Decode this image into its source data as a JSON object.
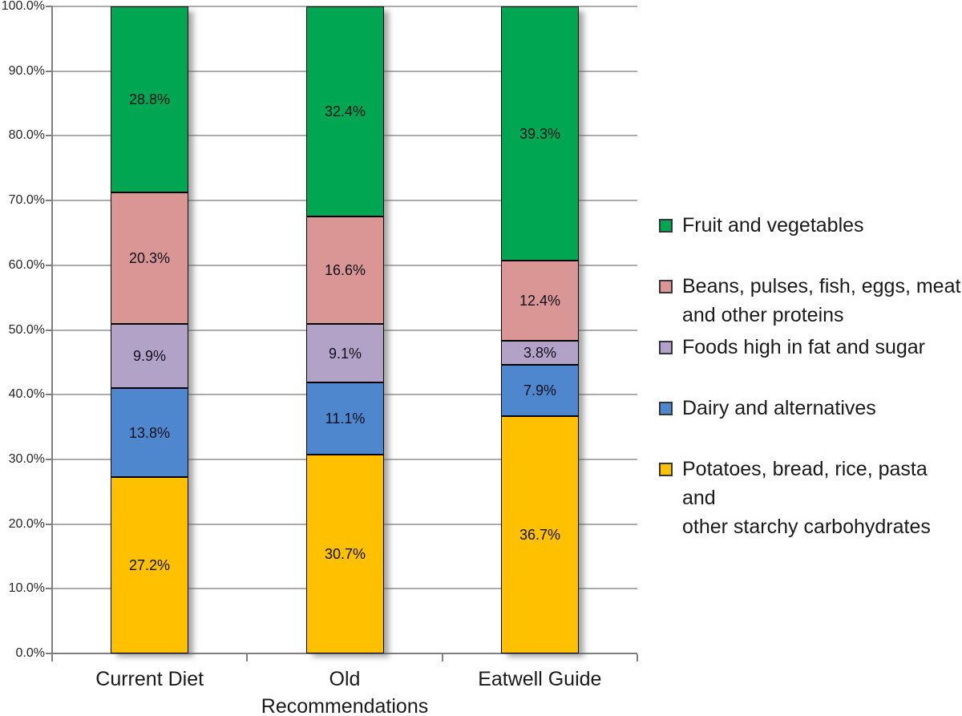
{
  "background": "#FFFFFF",
  "chart_data": {
    "type": "bar",
    "stacked": true,
    "title": "",
    "xlabel": "",
    "ylabel": "",
    "ylim": [
      0,
      100
    ],
    "grid": true,
    "legend_position": "right",
    "categories": [
      "Current Diet",
      "Old\nRecommendations",
      "Eatwell Guide"
    ],
    "y_tick_labels": [
      "0.0%",
      "10.0%",
      "20.0%",
      "30.0%",
      "40.0%",
      "50.0%",
      "60.0%",
      "70.0%",
      "80.0%",
      "90.0%",
      "100.0%"
    ],
    "series": [
      {
        "name": "Potatoes, bread, rice, pasta and other starchy carbohydrates",
        "color": "#FFC000",
        "values": [
          27.2,
          30.7,
          36.7
        ]
      },
      {
        "name": "Dairy and alternatives",
        "color": "#4E87CE",
        "values": [
          13.8,
          11.1,
          7.9
        ]
      },
      {
        "name": "Foods high in fat and sugar",
        "color": "#B3A2C8",
        "values": [
          9.9,
          9.1,
          3.8
        ]
      },
      {
        "name": "Beans, pulses, fish, eggs, meat and other proteins",
        "color": "#D99694",
        "values": [
          20.3,
          16.6,
          12.4
        ]
      },
      {
        "name": "Fruit and vegetables",
        "color": "#00A651",
        "values": [
          28.8,
          32.4,
          39.3
        ]
      }
    ],
    "data_label_format": "one-decimal-percent",
    "data_labels": [
      [
        "27.2%",
        "30.7%",
        "36.7%"
      ],
      [
        "13.8%",
        "11.1%",
        "7.9%"
      ],
      [
        "9.9%",
        "9.1%",
        "3.8%"
      ],
      [
        "20.3%",
        "16.6%",
        "12.4%"
      ],
      [
        "28.8%",
        "32.4%",
        "39.3%"
      ]
    ]
  },
  "legend": {
    "items": [
      {
        "label": "Fruit and vegetables",
        "color": "#00A651"
      },
      {
        "label": "Beans, pulses, fish, eggs, meat\nand other proteins",
        "color": "#D99694"
      },
      {
        "label": "Foods high in fat and sugar",
        "color": "#B3A2C8"
      },
      {
        "label": "Dairy and alternatives",
        "color": "#4E87CE"
      },
      {
        "label": "Potatoes, bread, rice, pasta and\nother starchy carbohydrates",
        "color": "#FFC000"
      }
    ]
  },
  "colors": {
    "gridline": "#ACACAC",
    "axis": "#7F7F7F",
    "tick_label": "#262626",
    "data_label": "#10101C",
    "legend_text": "#1A1A1A"
  }
}
